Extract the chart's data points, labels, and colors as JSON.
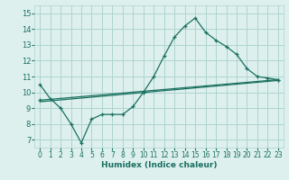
{
  "xlabel": "Humidex (Indice chaleur)",
  "xlim": [
    -0.5,
    23.5
  ],
  "ylim": [
    6.5,
    15.5
  ],
  "xticks": [
    0,
    1,
    2,
    3,
    4,
    5,
    6,
    7,
    8,
    9,
    10,
    11,
    12,
    13,
    14,
    15,
    16,
    17,
    18,
    19,
    20,
    21,
    22,
    23
  ],
  "yticks": [
    7,
    8,
    9,
    10,
    11,
    12,
    13,
    14,
    15
  ],
  "background_color": "#ddf0ee",
  "grid_color": "#aed4cf",
  "line_color": "#1a7060",
  "line1_x": [
    0,
    1,
    2,
    3,
    4,
    5,
    6,
    7,
    8,
    9,
    10,
    11,
    12,
    13,
    14,
    15,
    16,
    17,
    18,
    19,
    20,
    21,
    22,
    23
  ],
  "line1_y": [
    10.5,
    9.6,
    9.0,
    8.0,
    6.8,
    8.3,
    8.6,
    8.6,
    8.6,
    9.1,
    10.0,
    11.0,
    12.3,
    13.5,
    14.2,
    14.7,
    13.8,
    13.3,
    12.9,
    12.4,
    11.5,
    11.0,
    10.9,
    10.8
  ],
  "line2_x": [
    0,
    23
  ],
  "line2_y": [
    9.5,
    10.8
  ],
  "line3_x": [
    0,
    23
  ],
  "line3_y": [
    9.4,
    10.75
  ]
}
